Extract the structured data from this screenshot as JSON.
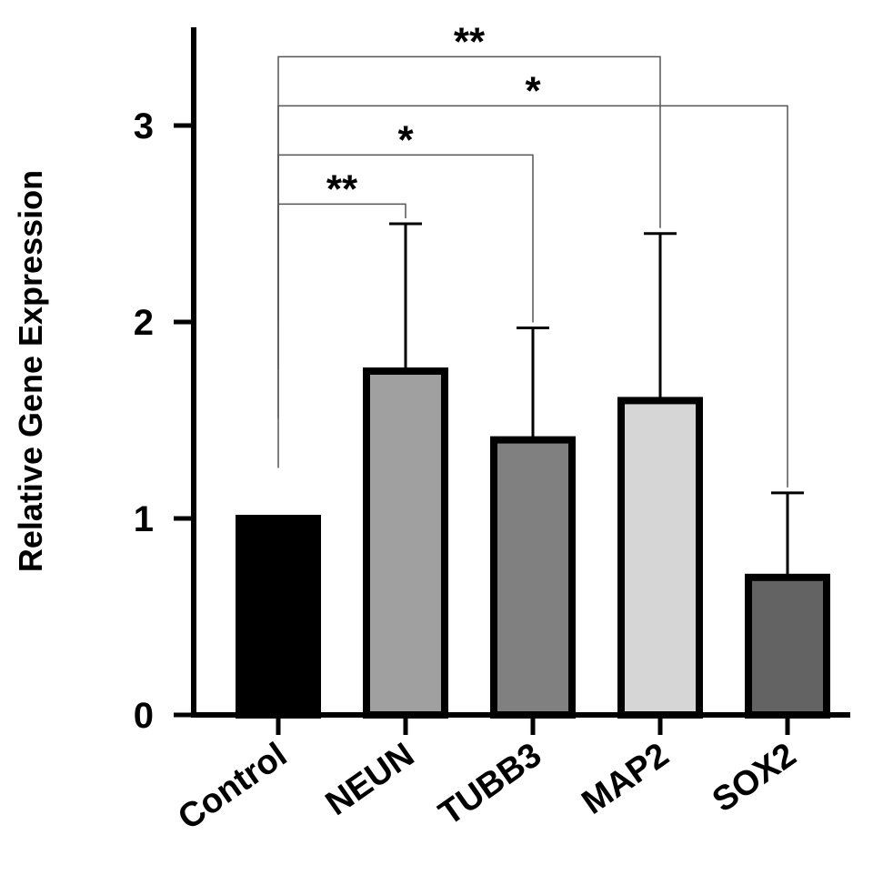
{
  "chart_data": {
    "type": "bar",
    "title": "",
    "xlabel": "",
    "ylabel": "Relative Gene Expression",
    "ylim": [
      0,
      3.5
    ],
    "yticks": [
      0,
      1,
      2,
      3
    ],
    "grid": false,
    "categories": [
      "Control",
      "NEUN",
      "TUBB3",
      "MAP2",
      "SOX2"
    ],
    "values": [
      1.0,
      1.75,
      1.4,
      1.6,
      0.7
    ],
    "error": [
      0,
      0.75,
      0.57,
      0.85,
      0.43
    ],
    "colors": [
      "#000000",
      "#a0a0a0",
      "#808080",
      "#d6d6d6",
      "#636363"
    ],
    "significance": [
      {
        "from": "Control",
        "to": "NEUN",
        "label": "**",
        "y": 2.6
      },
      {
        "from": "Control",
        "to": "TUBB3",
        "label": "*",
        "y": 2.85
      },
      {
        "from": "Control",
        "to": "SOX2",
        "label": "*",
        "y": 3.1
      },
      {
        "from": "Control",
        "to": "MAP2",
        "label": "**",
        "y": 3.35
      }
    ]
  }
}
